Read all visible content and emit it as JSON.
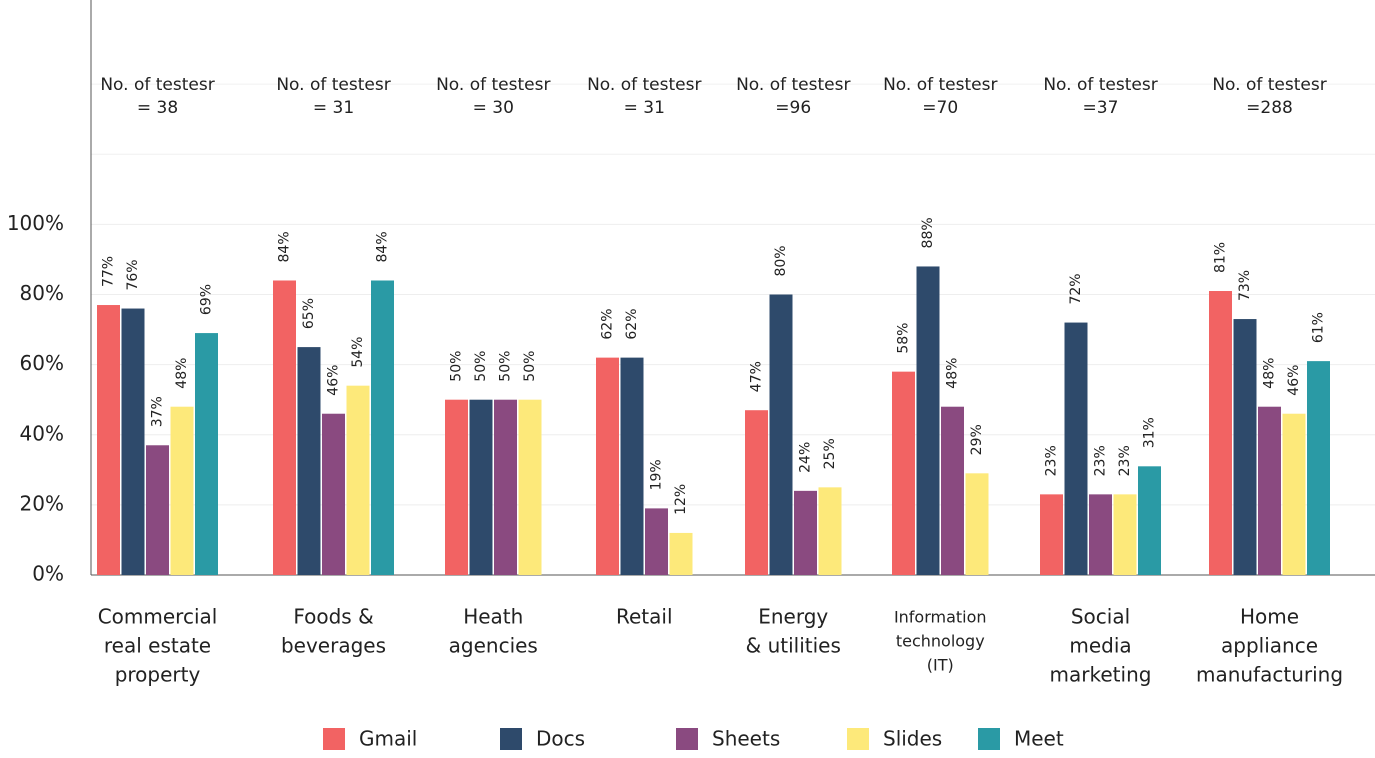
{
  "chart_data": {
    "type": "bar",
    "categories": [
      [
        "Commercial",
        "real estate",
        "property"
      ],
      [
        "Foods &",
        "beverages"
      ],
      [
        "Heath",
        "agencies"
      ],
      [
        "Retail"
      ],
      [
        "Energy",
        "& utilities"
      ],
      [
        "Information",
        "technology",
        "(IT)"
      ],
      [
        "Social",
        "media",
        "marketing"
      ],
      [
        "Home",
        "appliance",
        "manufacturing"
      ]
    ],
    "annotations": [
      [
        "No. of testesr",
        "= 38"
      ],
      [
        "No. of testesr",
        "= 31"
      ],
      [
        "No. of testesr",
        "= 30"
      ],
      [
        "No. of testesr",
        "= 31"
      ],
      [
        "No. of testesr",
        "=96"
      ],
      [
        "No. of testesr",
        "=70"
      ],
      [
        "No. of testesr",
        "=37"
      ],
      [
        "No. of testesr",
        "=288"
      ]
    ],
    "series": [
      {
        "name": "Gmail",
        "color": "#f26363",
        "values": [
          77,
          84,
          50,
          62,
          47,
          58,
          23,
          81
        ],
        "value_labels": [
          "77%",
          "84%",
          "50%",
          "62%",
          "47%",
          "58%",
          "23%",
          "81%"
        ]
      },
      {
        "name": "Docs",
        "color": "#2e4a6b",
        "values": [
          76,
          65,
          50,
          62,
          80,
          88,
          72,
          73
        ],
        "value_labels": [
          "76%",
          "65%",
          "50%",
          "62%",
          "80%",
          "88%",
          "72%",
          "73%"
        ]
      },
      {
        "name": "Sheets",
        "color": "#8a4a80",
        "values": [
          37,
          46,
          50,
          19,
          24,
          48,
          23,
          48
        ],
        "value_labels": [
          "37%",
          "46%",
          "50%",
          "19%",
          "24%",
          "48%",
          "23%",
          "48%"
        ]
      },
      {
        "name": "Slides",
        "color": "#fde97a",
        "values": [
          48,
          54,
          50,
          12,
          25,
          29,
          23,
          46
        ],
        "value_labels": [
          "48%",
          "54%",
          "50%",
          "12%",
          "25%",
          "29%",
          "23%",
          "46%"
        ]
      },
      {
        "name": "Meet",
        "color": "#2a9aa5",
        "values": [
          69,
          84,
          null,
          null,
          null,
          null,
          31,
          61
        ],
        "value_labels": [
          "69%",
          "84%",
          null,
          null,
          null,
          null,
          "31%",
          "61%"
        ]
      }
    ],
    "ylim": [
      0,
      164
    ],
    "yticks": [
      {
        "value": 0,
        "label": "0%"
      },
      {
        "value": 20,
        "label": "20%"
      },
      {
        "value": 40,
        "label": "40%"
      },
      {
        "value": 60,
        "label": "60%"
      },
      {
        "value": 80,
        "label": "80%"
      },
      {
        "value": 100,
        "label": "100%"
      }
    ],
    "grid": true
  }
}
